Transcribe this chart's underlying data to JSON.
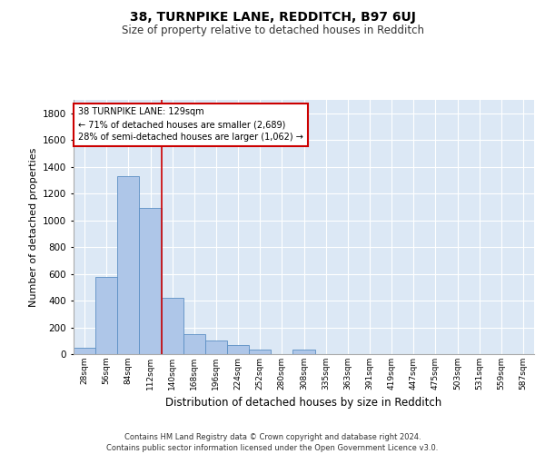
{
  "title": "38, TURNPIKE LANE, REDDITCH, B97 6UJ",
  "subtitle": "Size of property relative to detached houses in Redditch",
  "xlabel": "Distribution of detached houses by size in Redditch",
  "ylabel": "Number of detached properties",
  "bin_labels": [
    "28sqm",
    "56sqm",
    "84sqm",
    "112sqm",
    "140sqm",
    "168sqm",
    "196sqm",
    "224sqm",
    "252sqm",
    "280sqm",
    "308sqm",
    "335sqm",
    "363sqm",
    "391sqm",
    "419sqm",
    "447sqm",
    "475sqm",
    "503sqm",
    "531sqm",
    "559sqm",
    "587sqm"
  ],
  "bar_heights": [
    50,
    580,
    1330,
    1090,
    420,
    150,
    100,
    65,
    35,
    0,
    35,
    0,
    0,
    0,
    0,
    0,
    0,
    0,
    0,
    0,
    0
  ],
  "bar_color": "#aec6e8",
  "bar_edge_color": "#5b8fc4",
  "vline_color": "#cc0000",
  "annotation_text": "38 TURNPIKE LANE: 129sqm\n← 71% of detached houses are smaller (2,689)\n28% of semi-detached houses are larger (1,062) →",
  "annotation_box_color": "#ffffff",
  "annotation_box_edge_color": "#cc0000",
  "ylim": [
    0,
    1900
  ],
  "yticks": [
    0,
    200,
    400,
    600,
    800,
    1000,
    1200,
    1400,
    1600,
    1800
  ],
  "footer": "Contains HM Land Registry data © Crown copyright and database right 2024.\nContains public sector information licensed under the Open Government Licence v3.0.",
  "bg_color": "#dce8f5",
  "grid_color": "#ffffff",
  "title_fontsize": 10,
  "subtitle_fontsize": 8.5,
  "ylabel_fontsize": 8,
  "xlabel_fontsize": 8.5,
  "vline_x": 3.5
}
